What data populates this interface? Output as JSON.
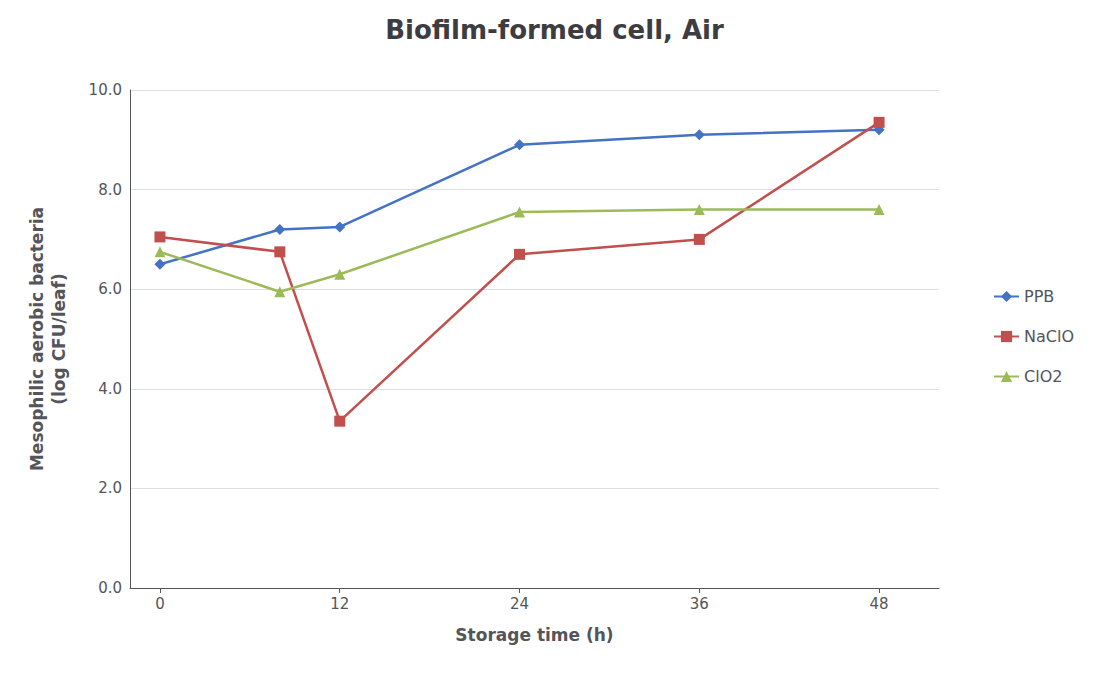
{
  "chart_data": {
    "type": "line",
    "title": "Biofilm-formed cell, Air",
    "xlabel": "Storage time (h)",
    "ylabel": "Mesophilic aerobic bacteria\n(log CFU/leaf)",
    "x": [
      0,
      8,
      12,
      24,
      36,
      48
    ],
    "series": [
      {
        "name": "PPB",
        "color": "#4472C4",
        "marker": "diamond",
        "values": [
          6.5,
          7.2,
          7.25,
          8.9,
          9.1,
          9.2
        ]
      },
      {
        "name": "NaClO",
        "color": "#C0504D",
        "marker": "square",
        "values": [
          7.05,
          6.75,
          3.35,
          6.7,
          7.0,
          9.35
        ]
      },
      {
        "name": "ClO2",
        "color": "#9BBB59",
        "marker": "triangle",
        "values": [
          6.75,
          5.95,
          6.3,
          7.55,
          7.6,
          7.6
        ]
      }
    ],
    "xlim": [
      -2,
      52
    ],
    "xticks": [
      0,
      12,
      24,
      36,
      48
    ],
    "ylim": [
      0.0,
      10.0
    ],
    "yticks": [
      {
        "value": 0.0,
        "label": "0.0"
      },
      {
        "value": 2.0,
        "label": "2.0"
      },
      {
        "value": 4.0,
        "label": "4.0"
      },
      {
        "value": 6.0,
        "label": "6.0"
      },
      {
        "value": 8.0,
        "label": "8.0"
      },
      {
        "value": 10.0,
        "label": "10.0"
      }
    ],
    "grid": true,
    "legend": "right"
  }
}
